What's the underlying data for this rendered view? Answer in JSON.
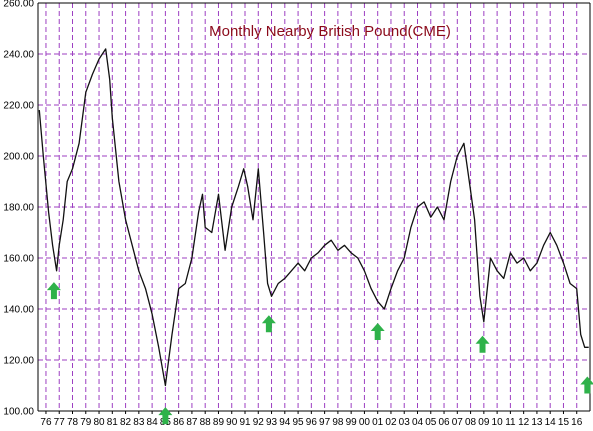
{
  "chart_data": {
    "type": "line",
    "title": "Monthly Nearby British Pound(CME)",
    "xlabel": "",
    "ylabel": "",
    "x_tick_labels": [
      "76",
      "77",
      "78",
      "79",
      "80",
      "81",
      "82",
      "83",
      "84",
      "85",
      "86",
      "87",
      "88",
      "89",
      "90",
      "91",
      "92",
      "93",
      "94",
      "95",
      "96",
      "97",
      "98",
      "99",
      "00",
      "01",
      "02",
      "03",
      "04",
      "05",
      "06",
      "07",
      "08",
      "09",
      "10",
      "11",
      "12",
      "13",
      "14",
      "15",
      "16"
    ],
    "y_tick_labels": [
      "100.00",
      "120.00",
      "140.00",
      "160.00",
      "180.00",
      "200.00",
      "220.00",
      "240.00",
      "260.00"
    ],
    "ylim": [
      100,
      260
    ],
    "xlim": [
      1975.4,
      2017.0
    ],
    "grid": true,
    "colors": {
      "grid": "#9d3fc2",
      "line": "#111111",
      "title": "#8b0a1a",
      "arrows": "#2fb24a"
    },
    "series": [
      {
        "x": [
          1975.5,
          1975.8,
          1976.2,
          1976.5,
          1976.8,
          1977.0,
          1977.3,
          1977.6,
          1978.0,
          1978.5,
          1979.0,
          1979.5,
          1980.0,
          1980.5,
          1980.8,
          1981.0,
          1981.5,
          1982.0,
          1982.5,
          1983.0,
          1983.5,
          1984.0,
          1984.5,
          1985.0,
          1985.2,
          1985.5,
          1986.0,
          1986.5,
          1987.0,
          1987.5,
          1987.8,
          1988.0,
          1988.5,
          1989.0,
          1989.5,
          1990.0,
          1990.5,
          1990.9,
          1991.2,
          1991.6,
          1992.0,
          1992.4,
          1992.7,
          1993.0,
          1993.5,
          1994.0,
          1994.5,
          1995.0,
          1995.5,
          1996.0,
          1996.5,
          1997.0,
          1997.5,
          1998.0,
          1998.5,
          1999.0,
          1999.5,
          2000.0,
          2000.5,
          2001.0,
          2001.5,
          2002.0,
          2002.5,
          2003.0,
          2003.5,
          2004.0,
          2004.5,
          2005.0,
          2005.5,
          2006.0,
          2006.5,
          2007.0,
          2007.5,
          2007.9,
          2008.3,
          2008.7,
          2009.0,
          2009.5,
          2010.0,
          2010.5,
          2011.0,
          2011.5,
          2012.0,
          2012.5,
          2013.0,
          2013.5,
          2014.0,
          2014.5,
          2015.0,
          2015.5,
          2016.0,
          2016.3,
          2016.6,
          2016.9
        ],
        "y": [
          218,
          200,
          178,
          165,
          155,
          165,
          175,
          190,
          195,
          205,
          225,
          232,
          238,
          242,
          230,
          215,
          190,
          175,
          165,
          155,
          148,
          138,
          125,
          110,
          118,
          130,
          148,
          150,
          160,
          178,
          185,
          172,
          170,
          185,
          163,
          180,
          188,
          195,
          188,
          175,
          195,
          170,
          150,
          145,
          150,
          152,
          155,
          158,
          155,
          160,
          162,
          165,
          167,
          163,
          165,
          162,
          160,
          155,
          148,
          143,
          140,
          148,
          155,
          160,
          172,
          180,
          182,
          176,
          180,
          175,
          190,
          200,
          205,
          190,
          175,
          145,
          135,
          160,
          155,
          152,
          162,
          158,
          160,
          155,
          158,
          165,
          170,
          165,
          158,
          150,
          148,
          130,
          125,
          125
        ]
      }
    ],
    "annotations": [
      {
        "type": "up-arrow",
        "x": 1976.6,
        "y": 147
      },
      {
        "type": "up-arrow",
        "x": 1985.0,
        "y": 98
      },
      {
        "type": "up-arrow",
        "x": 1992.8,
        "y": 134
      },
      {
        "type": "up-arrow",
        "x": 2001.0,
        "y": 131
      },
      {
        "type": "up-arrow",
        "x": 2008.9,
        "y": 126
      },
      {
        "type": "up-arrow",
        "x": 2016.8,
        "y": 110
      }
    ]
  }
}
